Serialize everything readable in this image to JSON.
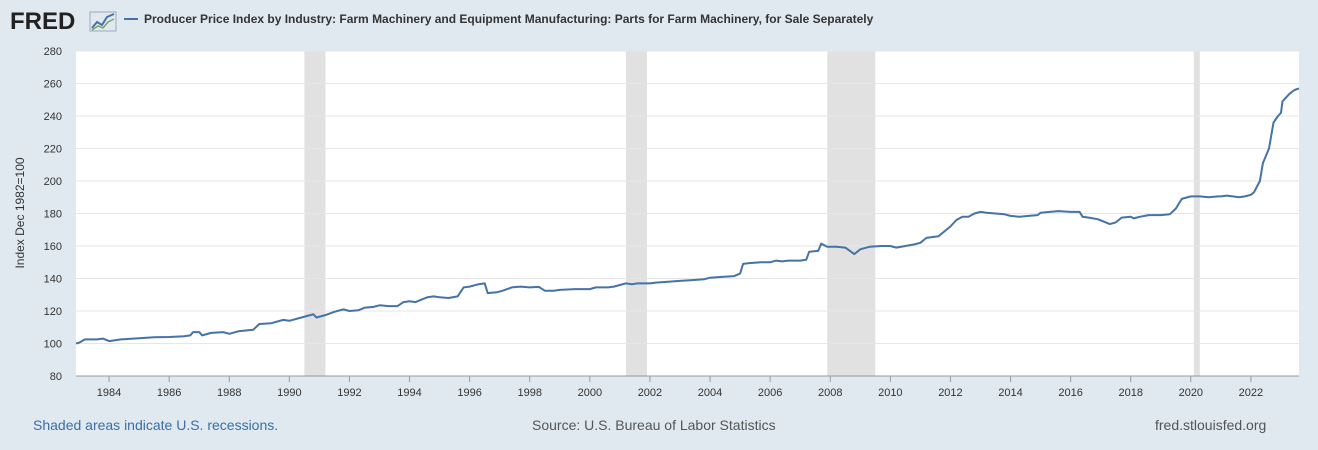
{
  "header": {
    "logo_text": "FRED",
    "legend_label": "Producer Price Index by Industry: Farm Machinery and Equipment Manufacturing: Parts for Farm Machinery, for Sale Separately"
  },
  "footer": {
    "recession_note": "Shaded areas indicate U.S. recessions.",
    "source": "Source: U.S. Bureau of Labor Statistics",
    "site": "fred.stlouisfed.org"
  },
  "colors": {
    "series": "#4572a7",
    "recession": "#e1e1e1",
    "background": "#e1e9f0",
    "plot": "#ffffff"
  },
  "chart_data": {
    "type": "line",
    "title": "",
    "xlabel": "",
    "ylabel": "Index Dec 1982=100",
    "ylim": [
      80,
      280
    ],
    "xlim": [
      1982.9,
      2023.6
    ],
    "grid": true,
    "legend_position": "top-left",
    "y_ticks": [
      "80",
      "100",
      "120",
      "140",
      "160",
      "180",
      "200",
      "220",
      "240",
      "260",
      "280"
    ],
    "x_ticks": [
      "1984",
      "1986",
      "1988",
      "1990",
      "1992",
      "1994",
      "1996",
      "1998",
      "2000",
      "2002",
      "2004",
      "2006",
      "2008",
      "2010",
      "2012",
      "2014",
      "2016",
      "2018",
      "2020",
      "2022"
    ],
    "recessions": [
      [
        1990.5,
        1991.2
      ],
      [
        2001.2,
        2001.9
      ],
      [
        2007.9,
        2009.5
      ],
      [
        2020.1,
        2020.3
      ]
    ],
    "series": [
      {
        "name": "Producer Price Index by Industry: Farm Machinery and Equipment Manufacturing: Parts for Farm Machinery, for Sale Separately",
        "points": [
          [
            1982.9,
            100
          ],
          [
            1983.0,
            100.5
          ],
          [
            1983.2,
            102.5
          ],
          [
            1983.6,
            102.5
          ],
          [
            1983.8,
            103
          ],
          [
            1984.0,
            101.5
          ],
          [
            1984.4,
            102.5
          ],
          [
            1985.0,
            103.2
          ],
          [
            1985.5,
            103.8
          ],
          [
            1986.0,
            104
          ],
          [
            1986.5,
            104.5
          ],
          [
            1986.7,
            105
          ],
          [
            1986.8,
            107
          ],
          [
            1987.0,
            107
          ],
          [
            1987.1,
            105
          ],
          [
            1987.4,
            106.5
          ],
          [
            1987.8,
            107
          ],
          [
            1988.0,
            106
          ],
          [
            1988.3,
            107.5
          ],
          [
            1988.8,
            108.5
          ],
          [
            1989.0,
            112
          ],
          [
            1989.4,
            112.5
          ],
          [
            1989.8,
            114.5
          ],
          [
            1990.0,
            114
          ],
          [
            1990.4,
            116
          ],
          [
            1990.6,
            117
          ],
          [
            1990.8,
            118
          ],
          [
            1990.9,
            116
          ],
          [
            1991.2,
            117.5
          ],
          [
            1991.5,
            119.5
          ],
          [
            1991.8,
            121
          ],
          [
            1992.0,
            120
          ],
          [
            1992.3,
            120.5
          ],
          [
            1992.5,
            122
          ],
          [
            1992.8,
            122.5
          ],
          [
            1993.0,
            123.5
          ],
          [
            1993.3,
            123
          ],
          [
            1993.6,
            123
          ],
          [
            1993.8,
            125.5
          ],
          [
            1994.0,
            126
          ],
          [
            1994.2,
            125.5
          ],
          [
            1994.4,
            127
          ],
          [
            1994.6,
            128.5
          ],
          [
            1994.8,
            129
          ],
          [
            1995.0,
            128.5
          ],
          [
            1995.3,
            128
          ],
          [
            1995.6,
            129
          ],
          [
            1995.8,
            134.5
          ],
          [
            1996.0,
            135
          ],
          [
            1996.3,
            136.5
          ],
          [
            1996.5,
            137
          ],
          [
            1996.6,
            131
          ],
          [
            1996.9,
            131.5
          ],
          [
            1997.1,
            132.5
          ],
          [
            1997.4,
            134.5
          ],
          [
            1997.7,
            135
          ],
          [
            1998.0,
            134.5
          ],
          [
            1998.3,
            134.8
          ],
          [
            1998.5,
            132.5
          ],
          [
            1998.8,
            132.5
          ],
          [
            1999.0,
            133
          ],
          [
            1999.5,
            133.5
          ],
          [
            2000.0,
            133.5
          ],
          [
            2000.2,
            134.5
          ],
          [
            2000.6,
            134.5
          ],
          [
            2000.8,
            135
          ],
          [
            2001.0,
            136
          ],
          [
            2001.2,
            137
          ],
          [
            2001.4,
            136.5
          ],
          [
            2001.6,
            137
          ],
          [
            2002.0,
            137
          ],
          [
            2002.2,
            137.5
          ],
          [
            2002.6,
            138
          ],
          [
            2003.0,
            138.5
          ],
          [
            2003.4,
            139
          ],
          [
            2003.8,
            139.5
          ],
          [
            2004.0,
            140.5
          ],
          [
            2004.4,
            141
          ],
          [
            2004.8,
            141.5
          ],
          [
            2005.0,
            143
          ],
          [
            2005.1,
            149
          ],
          [
            2005.3,
            149.5
          ],
          [
            2005.7,
            150
          ],
          [
            2006.0,
            150
          ],
          [
            2006.2,
            151
          ],
          [
            2006.4,
            150.5
          ],
          [
            2006.6,
            151
          ],
          [
            2007.0,
            151
          ],
          [
            2007.2,
            151.5
          ],
          [
            2007.3,
            156.5
          ],
          [
            2007.6,
            157
          ],
          [
            2007.7,
            161.5
          ],
          [
            2007.9,
            159.5
          ],
          [
            2008.2,
            159.5
          ],
          [
            2008.5,
            159
          ],
          [
            2008.8,
            155
          ],
          [
            2009.0,
            158
          ],
          [
            2009.3,
            159.5
          ],
          [
            2009.7,
            160
          ],
          [
            2010.0,
            160
          ],
          [
            2010.2,
            159
          ],
          [
            2010.5,
            160
          ],
          [
            2010.8,
            161
          ],
          [
            2011.0,
            162
          ],
          [
            2011.2,
            165
          ],
          [
            2011.6,
            166
          ],
          [
            2011.8,
            169
          ],
          [
            2012.0,
            172
          ],
          [
            2012.2,
            176
          ],
          [
            2012.4,
            178
          ],
          [
            2012.6,
            178
          ],
          [
            2012.8,
            180
          ],
          [
            2013.0,
            181
          ],
          [
            2013.2,
            180.5
          ],
          [
            2013.5,
            180
          ],
          [
            2013.8,
            179.5
          ],
          [
            2014.0,
            178.5
          ],
          [
            2014.3,
            178
          ],
          [
            2014.6,
            178.5
          ],
          [
            2014.9,
            179
          ],
          [
            2015.0,
            180.5
          ],
          [
            2015.3,
            181
          ],
          [
            2015.6,
            181.5
          ],
          [
            2016.0,
            181
          ],
          [
            2016.3,
            181
          ],
          [
            2016.4,
            178
          ],
          [
            2016.6,
            177.5
          ],
          [
            2016.9,
            176.5
          ],
          [
            2017.1,
            175
          ],
          [
            2017.3,
            173.5
          ],
          [
            2017.5,
            174.5
          ],
          [
            2017.7,
            177.5
          ],
          [
            2018.0,
            178
          ],
          [
            2018.1,
            177
          ],
          [
            2018.3,
            178
          ],
          [
            2018.6,
            179
          ],
          [
            2019.0,
            179
          ],
          [
            2019.3,
            179.5
          ],
          [
            2019.5,
            183
          ],
          [
            2019.7,
            189
          ],
          [
            2020.0,
            190.5
          ],
          [
            2020.3,
            190.5
          ],
          [
            2020.6,
            190
          ],
          [
            2020.9,
            190.5
          ],
          [
            2021.0,
            190.5
          ],
          [
            2021.2,
            191
          ],
          [
            2021.4,
            190.5
          ],
          [
            2021.6,
            190
          ],
          [
            2021.8,
            190.5
          ],
          [
            2022.0,
            191.5
          ],
          [
            2022.1,
            193
          ],
          [
            2022.3,
            200
          ],
          [
            2022.4,
            211
          ],
          [
            2022.6,
            220
          ],
          [
            2022.75,
            236
          ],
          [
            2022.9,
            240
          ],
          [
            2023.0,
            242
          ],
          [
            2023.05,
            249
          ],
          [
            2023.15,
            251
          ],
          [
            2023.3,
            254
          ],
          [
            2023.45,
            256
          ],
          [
            2023.6,
            257
          ]
        ]
      }
    ]
  }
}
